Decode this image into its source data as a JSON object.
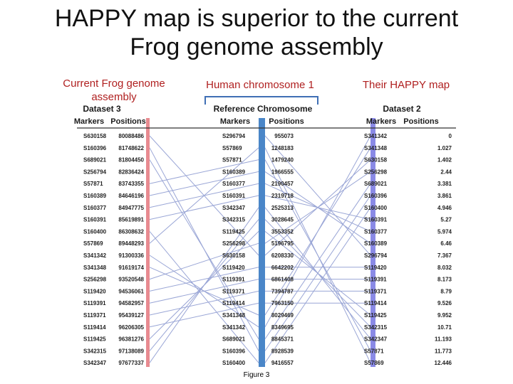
{
  "slide": {
    "title_line1": "HAPPY map is superior to the current",
    "title_line2": "Frog genome assembly"
  },
  "labels": {
    "frog": "Current Frog genome assembly",
    "human": "Human chromosome 1",
    "happy": "Their HAPPY map"
  },
  "figure": {
    "caption": "Figure 3",
    "colors": {
      "left_bar": "#e88a90",
      "mid_bar": "#4a86c8",
      "right_bar": "#8a8ae6",
      "lines": "#9aa6d6"
    },
    "left": {
      "title": "Dataset 3",
      "col_markers": "Markers",
      "col_positions": "Positions",
      "rows": [
        [
          "S630158",
          "80088486"
        ],
        [
          "S160396",
          "81748622"
        ],
        [
          "S689021",
          "81804450"
        ],
        [
          "S256794",
          "82836424"
        ],
        [
          "S57871",
          "83743355"
        ],
        [
          "S160389",
          "84646196"
        ],
        [
          "S160377",
          "84947775"
        ],
        [
          "S160391",
          "85619891"
        ],
        [
          "S160400",
          "86308632"
        ],
        [
          "S57869",
          "89448293"
        ],
        [
          "S341342",
          "91300336"
        ],
        [
          "S341348",
          "91619174"
        ],
        [
          "S256298",
          "93520548"
        ],
        [
          "S119420",
          "94536061"
        ],
        [
          "S119391",
          "94582957"
        ],
        [
          "S119371",
          "95439127"
        ],
        [
          "S119414",
          "96206305"
        ],
        [
          "S119425",
          "96381276"
        ],
        [
          "S342315",
          "97138089"
        ],
        [
          "S342347",
          "97677337"
        ]
      ]
    },
    "middle": {
      "title": "Reference Chromosome",
      "col_markers": "Markers",
      "col_positions": "Positions",
      "rows": [
        [
          "S296794",
          "955073"
        ],
        [
          "S57869",
          "1248183"
        ],
        [
          "S57871",
          "1479240"
        ],
        [
          "S160389",
          "1966555"
        ],
        [
          "S160377",
          "2190457"
        ],
        [
          "S160391",
          "2319718"
        ],
        [
          "S342347",
          "2525313"
        ],
        [
          "S342315",
          "3028645"
        ],
        [
          "S119425",
          "3553352"
        ],
        [
          "S256298",
          "5196795"
        ],
        [
          "S630158",
          "6208330"
        ],
        [
          "S119420",
          "6642202"
        ],
        [
          "S119391",
          "6861408"
        ],
        [
          "S119371",
          "7394787"
        ],
        [
          "S119414",
          "7963150"
        ],
        [
          "S341348",
          "8029469"
        ],
        [
          "S341342",
          "8349695"
        ],
        [
          "S689021",
          "8845371"
        ],
        [
          "S160396",
          "8928539"
        ],
        [
          "S160400",
          "9416557"
        ]
      ]
    },
    "right": {
      "title": "Dataset 2",
      "col_markers": "Markers",
      "col_positions": "Positions",
      "rows": [
        [
          "S341342",
          "0"
        ],
        [
          "S341348",
          "1.027"
        ],
        [
          "S630158",
          "1.402"
        ],
        [
          "S256298",
          "2.44"
        ],
        [
          "S689021",
          "3.381"
        ],
        [
          "S160396",
          "3.861"
        ],
        [
          "S160400",
          "4.946"
        ],
        [
          "S160391",
          "5.27"
        ],
        [
          "S160377",
          "5.974"
        ],
        [
          "S160389",
          "6.46"
        ],
        [
          "S296794",
          "7.367"
        ],
        [
          "S119420",
          "8.032"
        ],
        [
          "S119391",
          "8.173"
        ],
        [
          "S119371",
          "8.79"
        ],
        [
          "S119414",
          "9.526"
        ],
        [
          "S119425",
          "9.952"
        ],
        [
          "S342315",
          "10.71"
        ],
        [
          "S342347",
          "11.193"
        ],
        [
          "S57871",
          "11.773"
        ],
        [
          "S57869",
          "12.446"
        ]
      ]
    }
  }
}
